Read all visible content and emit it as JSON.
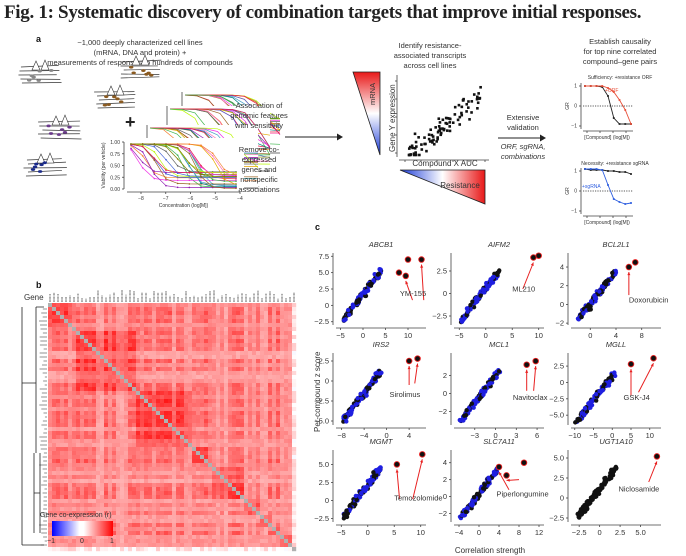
{
  "figure": {
    "title": "Fig. 1: Systematic discovery of combination targets that improve initial responses.",
    "panel_labels": [
      "a",
      "b",
      "c"
    ]
  },
  "panel_a": {
    "cell_lines_text": [
      "~1,000 deeply characterized cell lines",
      "(mRNA, DNA and protein) +",
      "measurements of responses to hundreds of compounds"
    ],
    "plus_sign": "+",
    "viability_plot": {
      "ylabel": "Viability (per vehicle)",
      "xlabel": "Concentration (log[M])",
      "yticks": [
        "1.00",
        "0.75",
        "0.50",
        "0.25",
        "0.00"
      ],
      "xticks": [
        "-8",
        "-7",
        "-6",
        "-5",
        "-4"
      ]
    },
    "association_text": [
      "Association of",
      "genomic features",
      "with sensitivity"
    ],
    "remove_text": [
      "Remove co-",
      "expressed",
      "genes and",
      "nonspecific",
      "associations"
    ],
    "identify_text": [
      "Identify resistance-",
      "associated transcripts",
      "across cell lines"
    ],
    "mrna_label": "mRNA",
    "scatter_ylabel": "Gene Y expression",
    "scatter_xlabel": "Compound X AUC",
    "resistance_label": "Resistance",
    "validation_text": [
      "Extensive",
      "validation"
    ],
    "validation_methods": [
      "ORF, sgRNA,",
      "combinations"
    ],
    "causality_text": [
      "Establish causality",
      "for top nine correlated",
      "compound–gene pairs"
    ],
    "sufficiency": {
      "title": "Sufficiency: +resistance ORF",
      "ylabel": "GR",
      "xlabel": "[Compound] (log[M])",
      "yticks": [
        "1",
        "0",
        "−1"
      ],
      "curve_label": "+ORF",
      "control_color": "#222222",
      "treatment_color": "#e8503a"
    },
    "necessity": {
      "title": "Necessity: +resistance sgRNA",
      "ylabel": "GR",
      "xlabel": "[Compound] (log[M])",
      "yticks": [
        "1",
        "0",
        "−1"
      ],
      "curve_label": "+sgRNA",
      "control_color": "#222222",
      "treatment_color": "#2f5fe0"
    }
  },
  "panel_b": {
    "row_label": "Gene",
    "legend_title": "Gene co-expression (r)",
    "legend_ticks": [
      "−1",
      "0",
      "1"
    ],
    "colors": {
      "low": "#0000ff",
      "mid": "#ffffff",
      "high": "#ff0000",
      "diagonal": "#b0b0b0"
    }
  },
  "panel_c": {
    "ylabel": "Per-compound z score",
    "xlabel": "Correlation strength",
    "colors": {
      "black": "#111111",
      "blue": "#1f1fe0",
      "arrow": "#e82020"
    },
    "plots": [
      {
        "gene": "ABCB1",
        "compound": "YM-155",
        "xticks": [
          "−5",
          "0",
          "5",
          "10"
        ],
        "yticks": [
          "−2.5",
          "0",
          "2.5",
          "5.0",
          "7.5"
        ],
        "xlim": [
          -6,
          14
        ],
        "ylim": [
          -3,
          8
        ]
      },
      {
        "gene": "AIFM2",
        "compound": "ML210",
        "xticks": [
          "−5",
          "0",
          "5",
          "10"
        ],
        "yticks": [
          "−2.5",
          "0",
          "2.5"
        ],
        "xlim": [
          -6,
          11
        ],
        "ylim": [
          -3.5,
          4.5
        ]
      },
      {
        "gene": "BCL2L1",
        "compound": "Doxorubicin",
        "xticks": [
          "0",
          "4",
          "8"
        ],
        "yticks": [
          "−2",
          "0",
          "2",
          "4"
        ],
        "xlim": [
          -3,
          11
        ],
        "ylim": [
          -2.2,
          5.5
        ]
      },
      {
        "gene": "IRS2",
        "compound": "Sirolimus",
        "xticks": [
          "−8",
          "−4",
          "0",
          "4"
        ],
        "yticks": [
          "−5.0",
          "−2.5",
          "0",
          "2.5"
        ],
        "xlim": [
          -9,
          7
        ],
        "ylim": [
          -5.5,
          3.5
        ]
      },
      {
        "gene": "MCL1",
        "compound": "Navitoclax",
        "xticks": [
          "−3",
          "0",
          "3",
          "6"
        ],
        "yticks": [
          "−2",
          "0",
          "2"
        ],
        "xlim": [
          -6,
          7
        ],
        "ylim": [
          -3.5,
          4.5
        ]
      },
      {
        "gene": "MGLL",
        "compound": "GSK-J4",
        "xticks": [
          "−10",
          "−5",
          "0",
          "5",
          "10"
        ],
        "yticks": [
          "−5.0",
          "−2.5",
          "0",
          "2.5"
        ],
        "xlim": [
          -11,
          13
        ],
        "ylim": [
          -6.5,
          4.5
        ]
      },
      {
        "gene": "MGMT",
        "compound": "Temozolomide",
        "xticks": [
          "−5",
          "0",
          "5",
          "10"
        ],
        "yticks": [
          "−2.5",
          "0",
          "2.5",
          "5.0"
        ],
        "xlim": [
          -6,
          11
        ],
        "ylim": [
          -3,
          7
        ]
      },
      {
        "gene": "SLC7A11",
        "compound": "Piperlongumine",
        "xticks": [
          "−4",
          "0",
          "4",
          "8",
          "12"
        ],
        "yticks": [
          "−2",
          "0",
          "2",
          "4"
        ],
        "xlim": [
          -5,
          13
        ],
        "ylim": [
          -3,
          5.5
        ]
      },
      {
        "gene": "UGT1A10",
        "compound": "Niclosamide",
        "xticks": [
          "−2.5",
          "0",
          "2.5",
          "5.0"
        ],
        "yticks": [
          "−2.5",
          "0",
          "2.5",
          "5.0"
        ],
        "xlim": [
          -3.5,
          7.5
        ],
        "ylim": [
          -3,
          6
        ]
      }
    ]
  }
}
